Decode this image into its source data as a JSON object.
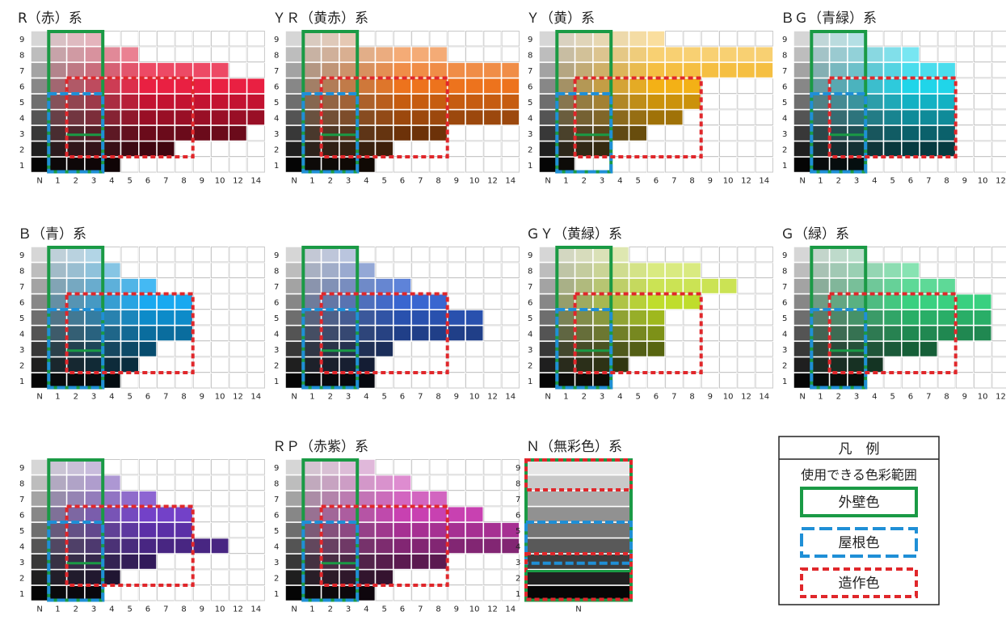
{
  "charts": [
    {
      "title": "R（赤）系",
      "hue": 350,
      "sat": 0.82,
      "light": 0.5,
      "extents": [
        4,
        7,
        11,
        13,
        13,
        12,
        10,
        5,
        3
      ]
    },
    {
      "title": "ＹＲ（黄赤）系",
      "hue": 25,
      "sat": 0.85,
      "light": 0.52,
      "extents": [
        4,
        5,
        8,
        12,
        12,
        13,
        14,
        8,
        3
      ]
    },
    {
      "title": "Ｙ（黄）系",
      "hue": 42,
      "sat": 0.9,
      "light": 0.55,
      "extents": [
        1,
        3,
        5,
        7,
        8,
        8,
        12,
        14,
        6
      ]
    },
    {
      "title": "ＢＧ（青緑）系",
      "hue": 186,
      "sat": 0.82,
      "light": 0.46,
      "extents": [
        3,
        8,
        8,
        8,
        8,
        8,
        8,
        6,
        3
      ]
    },
    {
      "title": "Ｂ（青）系",
      "hue": 200,
      "sat": 0.88,
      "light": 0.48,
      "extents": [
        4,
        5,
        6,
        8,
        8,
        8,
        6,
        4,
        3
      ]
    },
    {
      "title": "",
      "hue": 222,
      "sat": 0.62,
      "light": 0.5,
      "extents": [
        4,
        4,
        5,
        10,
        10,
        8,
        6,
        4,
        3
      ]
    },
    {
      "title": "ＧＹ（黄緑）系",
      "hue": 70,
      "sat": 0.72,
      "light": 0.48,
      "extents": [
        3,
        4,
        6,
        6,
        6,
        8,
        10,
        8,
        4
      ]
    },
    {
      "title": "Ｇ（緑）系",
      "hue": 148,
      "sat": 0.62,
      "light": 0.42,
      "extents": [
        3,
        4,
        7,
        10,
        10,
        10,
        8,
        6,
        3
      ]
    },
    {
      "title": "",
      "hue": 262,
      "sat": 0.55,
      "light": 0.5,
      "extents": [
        3,
        4,
        6,
        10,
        8,
        8,
        6,
        4,
        3
      ]
    },
    {
      "title": "ＲＰ（赤紫）系",
      "hue": 310,
      "sat": 0.55,
      "light": 0.5,
      "extents": [
        4,
        5,
        8,
        12,
        12,
        10,
        8,
        6,
        4
      ]
    }
  ],
  "y_ticks": [
    "1",
    "2",
    "3",
    "4",
    "5",
    "6",
    "7",
    "8",
    "9"
  ],
  "x_ticks": [
    "N",
    "1",
    "2",
    "3",
    "4",
    "5",
    "6",
    "7",
    "8",
    "9",
    "10",
    "12",
    "14"
  ],
  "neutral": {
    "title": "Ｎ（無彩色）系",
    "x_tick": "N",
    "y_ticks": [
      "1",
      "2",
      "3",
      "4",
      "5",
      "6",
      "7",
      "8",
      "9"
    ]
  },
  "legend": {
    "title": "凡　例",
    "subtitle": "使用できる色彩範囲",
    "items": [
      {
        "label": "外壁色",
        "color": "#1a9a45",
        "dash": false
      },
      {
        "label": "屋根色",
        "color": "#1f8fd6",
        "dash": true
      },
      {
        "label": "造作色",
        "color": "#e0272b",
        "dash": true
      }
    ]
  },
  "colors": {
    "wall": "#1a9a45",
    "roof": "#1f8fd6",
    "craft": "#e0272b",
    "grid": "#c8c8c8"
  }
}
